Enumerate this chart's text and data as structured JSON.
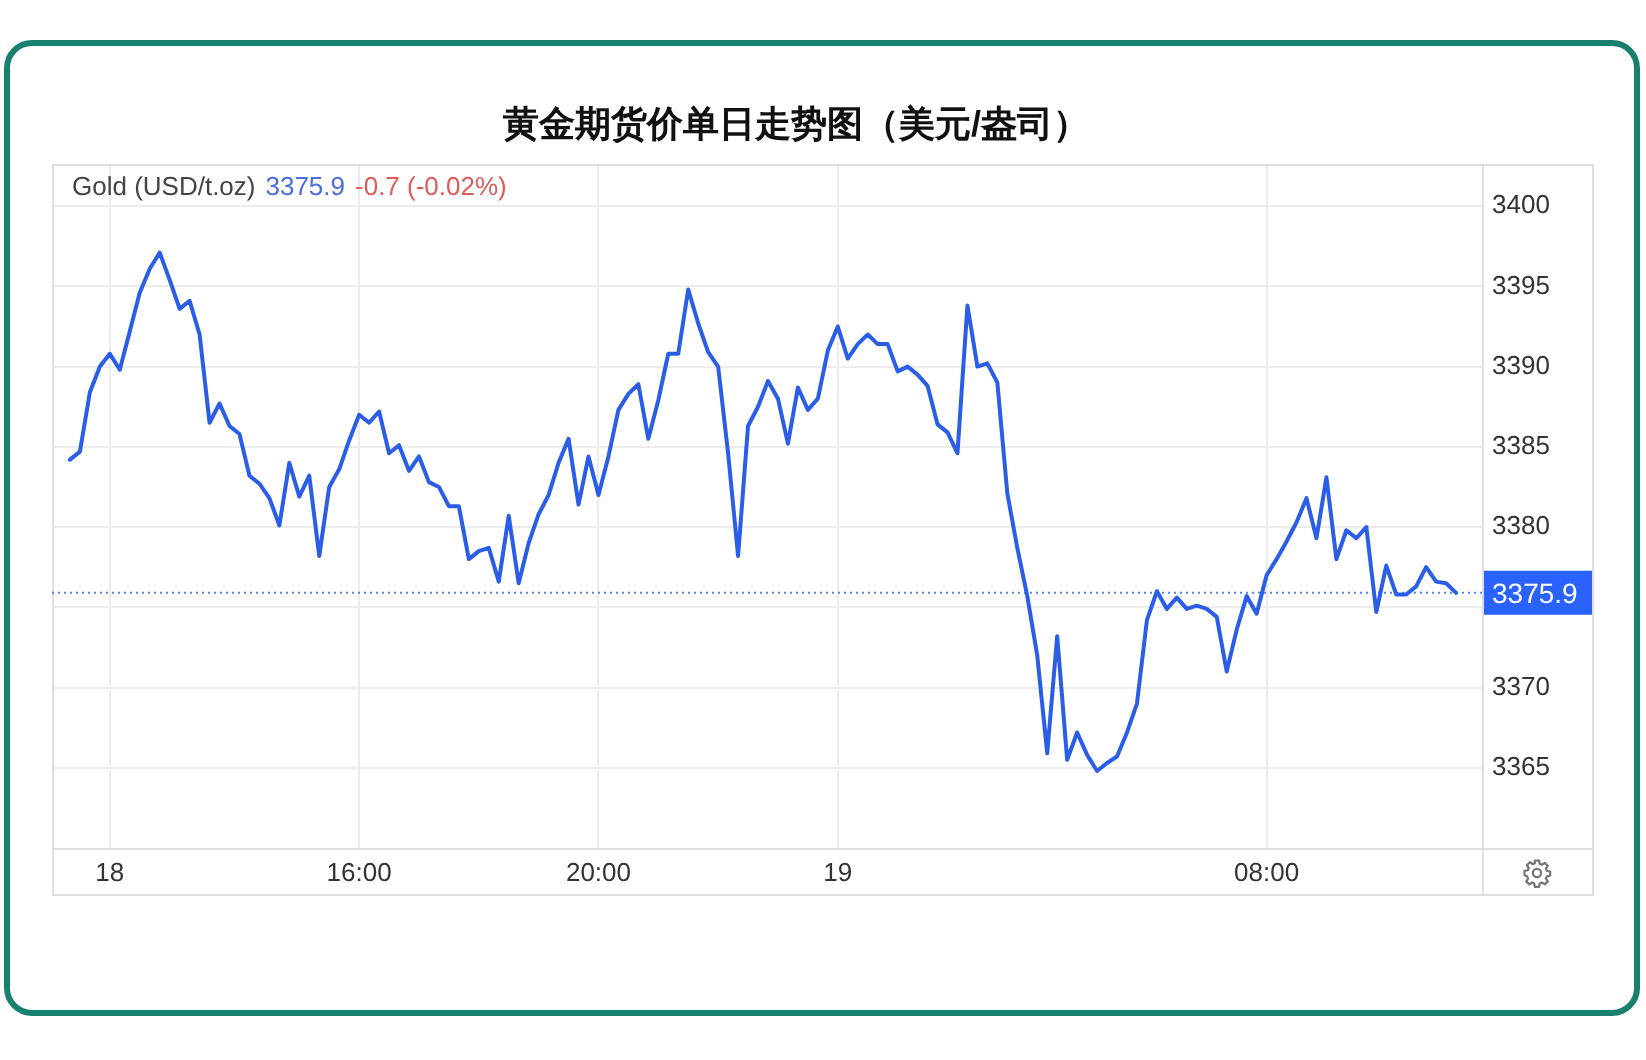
{
  "chart_data": {
    "type": "line",
    "title": "黄金期货价单日走势图（美元/盎司）",
    "annotations": [
      "Gold (USD/t.oz)",
      "3375.9",
      "-0.7 (-0.02%)"
    ],
    "categories": [
      null,
      null,
      null,
      null,
      "18",
      null,
      null,
      null,
      null,
      null,
      null,
      null,
      null,
      null,
      null,
      null,
      null,
      null,
      null,
      null,
      null,
      null,
      null,
      null,
      null,
      null,
      null,
      null,
      null,
      "16:00",
      null,
      null,
      null,
      null,
      null,
      null,
      null,
      null,
      null,
      null,
      null,
      null,
      null,
      null,
      null,
      null,
      null,
      null,
      null,
      null,
      null,
      null,
      null,
      "20:00",
      null,
      null,
      null,
      null,
      null,
      null,
      null,
      null,
      null,
      null,
      null,
      null,
      null,
      null,
      null,
      null,
      null,
      null,
      null,
      null,
      null,
      null,
      null,
      "19",
      null,
      null,
      null,
      null,
      null,
      null,
      null,
      null,
      null,
      null,
      null,
      null,
      null,
      null,
      null,
      null,
      null,
      null,
      null,
      null,
      null,
      null,
      null,
      null,
      null,
      null,
      null,
      null,
      null,
      null,
      null,
      null,
      null,
      null,
      null,
      null,
      null,
      null,
      null,
      null,
      null,
      null,
      "08:00",
      null,
      null,
      null,
      null,
      null,
      null,
      null,
      null,
      null,
      null,
      null,
      null,
      null,
      null,
      null,
      null,
      null,
      null,
      null
    ],
    "series": [
      {
        "color": "#2a5ee8",
        "values": [
          3384.2,
          3384.7,
          3388.4,
          3390.0,
          3390.8,
          3389.8,
          3392.2,
          3394.6,
          3396.1,
          3397.1,
          3395.4,
          3393.6,
          3394.1,
          3392.0,
          3386.5,
          3387.7,
          3386.3,
          3385.8,
          3383.2,
          3382.7,
          3381.8,
          3380.1,
          3384.0,
          3381.9,
          3383.2,
          3378.2,
          3382.5,
          3383.6,
          3385.4,
          3387.0,
          3386.5,
          3387.2,
          3384.6,
          3385.1,
          3383.5,
          3384.4,
          3382.8,
          3382.5,
          3381.3,
          3381.3,
          3378.0,
          3378.5,
          3378.7,
          3376.6,
          3380.7,
          3376.5,
          3379.0,
          3380.8,
          3382.0,
          3384.0,
          3385.5,
          3381.4,
          3384.4,
          3382.0,
          3384.4,
          3387.3,
          3388.3,
          3388.9,
          3385.5,
          3387.9,
          3390.8,
          3390.8,
          3394.8,
          3392.7,
          3390.9,
          3390.0,
          3384.6,
          3378.2,
          3386.3,
          3387.5,
          3389.1,
          3388.0,
          3385.2,
          3388.7,
          3387.3,
          3388.0,
          3391.0,
          3392.5,
          3390.5,
          3391.4,
          3392.0,
          3391.4,
          3391.4,
          3389.7,
          3390.0,
          3389.5,
          3388.8,
          3386.4,
          3385.9,
          3384.6,
          3393.8,
          3390.0,
          3390.2,
          3389.0,
          3382.1,
          3378.7,
          3375.7,
          3372.0,
          3365.9,
          3373.2,
          3365.5,
          3367.2,
          3365.8,
          3364.8,
          3365.3,
          3365.7,
          3367.2,
          3369.0,
          3374.2,
          3376.0,
          3374.9,
          3375.6,
          3374.9,
          3375.1,
          3374.9,
          3374.4,
          3371.0,
          3373.6,
          3375.7,
          3374.6,
          3377.0,
          3378.0,
          3379.1,
          3380.3,
          3381.8,
          3379.3,
          3383.1,
          3378.0,
          3379.8,
          3379.3,
          3380.0,
          3374.7,
          3377.6,
          3375.8,
          3375.8,
          3376.3,
          3377.5,
          3376.6,
          3376.5,
          3375.9
        ]
      }
    ],
    "ylim": [
      3360,
      3402.5
    ],
    "yticks": [
      3365,
      3370,
      {
        "value": 3375,
        "label": null
      },
      3380,
      3385,
      3390,
      3395,
      3400
    ],
    "grid": true,
    "marker": "none",
    "line_style": "solid",
    "ref_lines": [
      {
        "axis": "y",
        "value": 3375.9,
        "label": "3375.9",
        "color": "#2962ff",
        "line_style": "dotted"
      }
    ]
  }
}
